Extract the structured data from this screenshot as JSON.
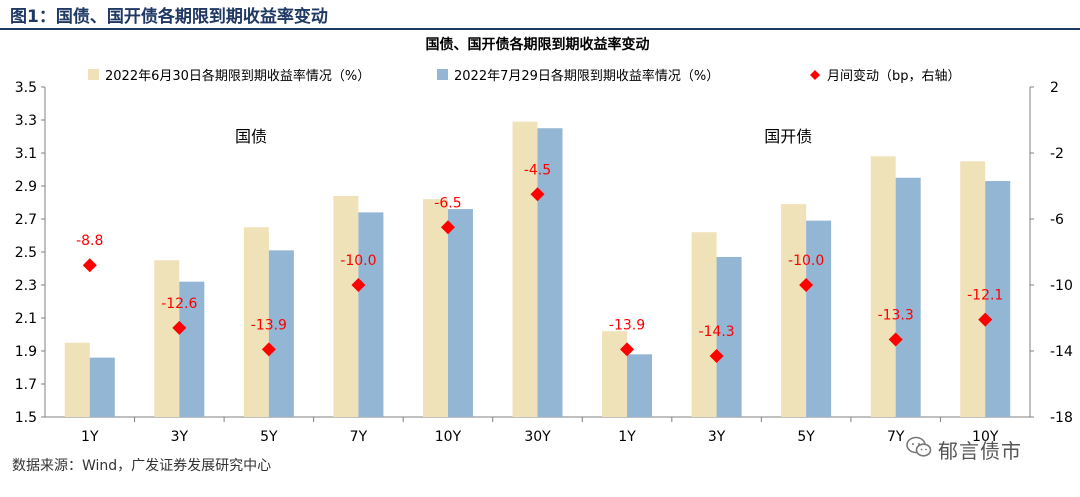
{
  "figure": {
    "header": "图1：国债、国开债各期限到期收益率变动",
    "source": "数据来源：Wind，广发证券发展研究中心",
    "watermark": "郁言债市"
  },
  "colors": {
    "series1": "#efe2b8",
    "series2": "#92b6d3",
    "change": "#ff0000",
    "header": "#1f3864"
  },
  "chart_data": {
    "type": "bar",
    "title": "国债、国开债各期限到期收益率变动",
    "categories": [
      "1Y",
      "3Y",
      "5Y",
      "7Y",
      "10Y",
      "30Y",
      "1Y",
      "3Y",
      "5Y",
      "7Y",
      "10Y"
    ],
    "group_labels": [
      {
        "text": "国债",
        "category_index": 1.8
      },
      {
        "text": "国开债",
        "category_index": 7.8
      }
    ],
    "series": [
      {
        "name": "2022年6月30日各期限到期收益率情况（%）",
        "axis": "left",
        "kind": "bar",
        "values": [
          1.95,
          2.45,
          2.65,
          2.84,
          2.82,
          3.29,
          2.02,
          2.62,
          2.79,
          3.08,
          3.05
        ]
      },
      {
        "name": "2022年7月29日各期限到期收益率情况（%）",
        "axis": "left",
        "kind": "bar",
        "values": [
          1.86,
          2.32,
          2.51,
          2.74,
          2.76,
          3.25,
          1.88,
          2.47,
          2.69,
          2.95,
          2.93
        ]
      },
      {
        "name": "月间变动（bp，右轴）",
        "axis": "right",
        "kind": "scatter",
        "values": [
          -8.8,
          -12.6,
          -13.9,
          -10.0,
          -6.5,
          -4.5,
          -13.9,
          -14.3,
          -10.0,
          -13.3,
          -12.1
        ],
        "labels": [
          "-8.8",
          "-12.6",
          "-13.9",
          "-10.0",
          "-6.5",
          "-4.5",
          "-13.9",
          "-14.3",
          "-10.0",
          "-13.3",
          "-12.1"
        ]
      }
    ],
    "y_left": {
      "min": 1.5,
      "max": 3.5,
      "ticks": [
        "1.5",
        "1.7",
        "1.9",
        "2.1",
        "2.3",
        "2.5",
        "2.7",
        "2.9",
        "3.1",
        "3.3",
        "3.5"
      ]
    },
    "y_right": {
      "min": -18,
      "max": 2,
      "ticks": [
        "-18",
        "-14",
        "-10",
        "-6",
        "-2",
        "2"
      ]
    },
    "legend_position": "top",
    "grid": false
  }
}
